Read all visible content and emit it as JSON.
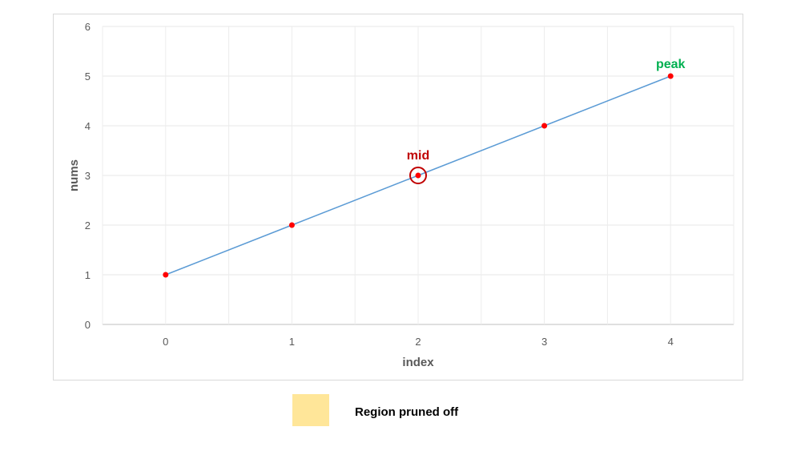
{
  "chart_data": {
    "type": "line",
    "x": [
      0,
      1,
      2,
      3,
      4
    ],
    "series": [
      {
        "values": [
          1,
          2,
          3,
          4,
          5
        ],
        "line_color": "#5b9bd5",
        "marker_color": "#ff0000"
      }
    ],
    "xlabel": "index",
    "ylabel": "nums",
    "xlim": [
      -0.5,
      4.5
    ],
    "ylim": [
      0,
      6
    ],
    "x_ticks": [
      "0",
      "1",
      "2",
      "3",
      "4"
    ],
    "y_ticks": [
      "0",
      "1",
      "2",
      "3",
      "4",
      "5",
      "6"
    ],
    "grid": true,
    "annotations": [
      {
        "text": "mid",
        "x": 2,
        "y": 3,
        "color": "#c00000",
        "circled": true
      },
      {
        "text": "peak",
        "x": 4,
        "y": 5,
        "color": "#00b050"
      }
    ],
    "legend": {
      "placement": "bottom",
      "entries": [
        {
          "label": "Region pruned off",
          "color": "#ffe699"
        }
      ]
    }
  }
}
